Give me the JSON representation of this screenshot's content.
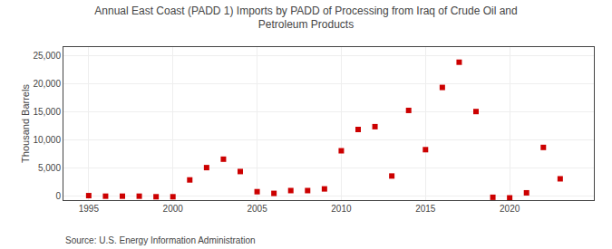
{
  "chart_data": {
    "type": "scatter",
    "title": "Annual East Coast (PADD 1) Imports by PADD of Processing from Iraq of Crude Oil and\nPetroleum Products",
    "ylabel": "Thousand Barrels",
    "annotations": [
      "Source: U.S. Energy Information Administration"
    ],
    "x": [
      1995,
      1996,
      1997,
      1998,
      1999,
      2000,
      2001,
      2002,
      2003,
      2004,
      2005,
      2006,
      2007,
      2008,
      2009,
      2010,
      2011,
      2012,
      2013,
      2014,
      2015,
      2016,
      2017,
      2018,
      2019,
      2020,
      2021,
      2022,
      2023
    ],
    "values": [
      0,
      -100,
      -100,
      -100,
      -200,
      -200,
      2800,
      5000,
      6500,
      4300,
      700,
      400,
      900,
      900,
      1200,
      8000,
      11800,
      12300,
      3500,
      15200,
      8200,
      19300,
      23800,
      15000,
      -300,
      -400,
      500,
      8600,
      3000
    ],
    "color": "#cc0000",
    "marker": "square",
    "xlim": [
      1993.5,
      2025
    ],
    "ylim": [
      -800,
      26500
    ],
    "xticks": [
      1995,
      2000,
      2005,
      2010,
      2015,
      2020
    ],
    "yticks": [
      0,
      {
        "value": 5000,
        "label": "5,000"
      },
      {
        "value": 10000,
        "label": "10,000"
      },
      {
        "value": 15000,
        "label": "15,000"
      },
      {
        "value": 20000,
        "label": "20,000"
      },
      {
        "value": 25000,
        "label": "25,000"
      }
    ],
    "grid": true
  }
}
